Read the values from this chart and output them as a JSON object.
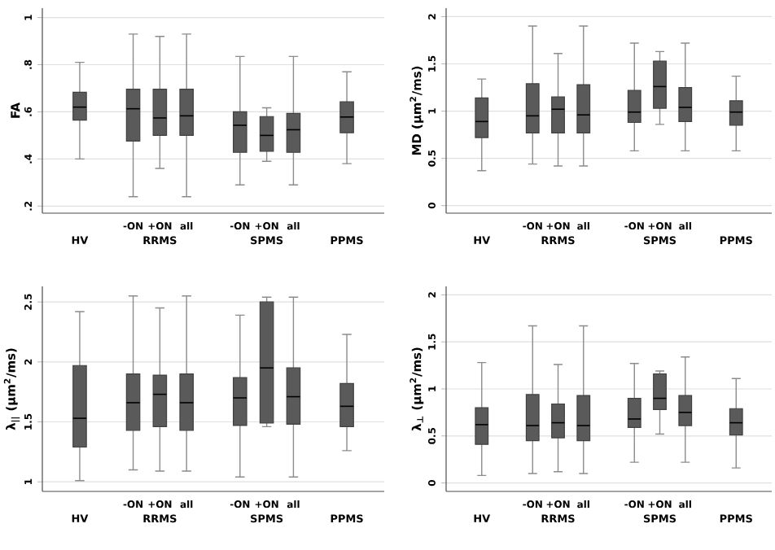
{
  "chart_data": [
    {
      "type": "box",
      "ylabel": "FA",
      "color": "#5a5a5a",
      "grid": "y",
      "categories": [
        null,
        null,
        "-ON",
        "+ON",
        "all",
        null,
        "-ON",
        "+ON",
        "all",
        null,
        null
      ],
      "annotations": [
        "HV",
        "RRMS",
        "SPMS",
        "PPMS"
      ],
      "ylim": [
        0.17,
        1.04
      ],
      "yticks": [
        {
          "value": 0.2,
          "label": ".2"
        },
        {
          "value": 0.4,
          "label": ".4"
        },
        {
          "value": 0.6,
          "label": ".6"
        },
        {
          "value": 0.8,
          "label": ".8"
        },
        1
      ],
      "boxes": [
        {
          "low": 0.4,
          "q1": 0.565,
          "median": 0.62,
          "q3": 0.683,
          "high": 0.81
        },
        null,
        {
          "low": 0.24,
          "q1": 0.476,
          "median": 0.613,
          "q3": 0.696,
          "high": 0.93
        },
        {
          "low": 0.36,
          "q1": 0.5,
          "median": 0.574,
          "q3": 0.696,
          "high": 0.92
        },
        {
          "low": 0.24,
          "q1": 0.5,
          "median": 0.583,
          "q3": 0.696,
          "high": 0.93
        },
        null,
        {
          "low": 0.29,
          "q1": 0.428,
          "median": 0.543,
          "q3": 0.6,
          "high": 0.835
        },
        {
          "low": 0.39,
          "q1": 0.433,
          "median": 0.5,
          "q3": 0.58,
          "high": 0.617
        },
        {
          "low": 0.29,
          "q1": 0.428,
          "median": 0.524,
          "q3": 0.593,
          "high": 0.835
        },
        null,
        {
          "low": 0.38,
          "q1": 0.511,
          "median": 0.578,
          "q3": 0.643,
          "high": 0.77
        }
      ]
    },
    {
      "type": "box",
      "ylabel": "MD (µm$^{2}$/ms)",
      "color": "#5a5a5a",
      "grid": "y",
      "categories": [
        null,
        null,
        "-ON",
        "+ON",
        "all",
        null,
        "-ON",
        "+ON",
        "all",
        null,
        null
      ],
      "annotations": [
        "HV",
        "RRMS",
        "SPMS",
        "PPMS"
      ],
      "ylim": [
        -0.08,
        2.09
      ],
      "yticks": [
        0,
        0.5,
        1,
        1.5,
        2
      ],
      "boxes": [
        {
          "low": 0.37,
          "q1": 0.72,
          "median": 0.89,
          "q3": 1.14,
          "high": 1.34
        },
        null,
        {
          "low": 0.44,
          "q1": 0.77,
          "median": 0.95,
          "q3": 1.29,
          "high": 1.9
        },
        {
          "low": 0.42,
          "q1": 0.77,
          "median": 1.02,
          "q3": 1.15,
          "high": 1.61
        },
        {
          "low": 0.42,
          "q1": 0.77,
          "median": 0.96,
          "q3": 1.28,
          "high": 1.9
        },
        null,
        {
          "low": 0.58,
          "q1": 0.88,
          "median": 0.99,
          "q3": 1.22,
          "high": 1.72
        },
        {
          "low": 0.86,
          "q1": 1.03,
          "median": 1.26,
          "q3": 1.53,
          "high": 1.63
        },
        {
          "low": 0.58,
          "q1": 0.89,
          "median": 1.04,
          "q3": 1.25,
          "high": 1.72
        },
        null,
        {
          "low": 0.58,
          "q1": 0.85,
          "median": 0.99,
          "q3": 1.11,
          "high": 1.37
        }
      ]
    },
    {
      "type": "box",
      "ylabel": "λ$_{||}$ (µm$^{2}$/ms)",
      "color": "#5a5a5a",
      "grid": "y",
      "categories": [
        null,
        null,
        "-ON",
        "+ON",
        "all",
        null,
        "-ON",
        "+ON",
        "all",
        null,
        null
      ],
      "annotations": [
        "HV",
        "RRMS",
        "SPMS",
        "PPMS"
      ],
      "ylim": [
        0.92,
        2.63
      ],
      "yticks": [
        1,
        1.5,
        2,
        2.5
      ],
      "boxes": [
        {
          "low": 1.01,
          "q1": 1.29,
          "median": 1.53,
          "q3": 1.97,
          "high": 2.42
        },
        null,
        {
          "low": 1.1,
          "q1": 1.43,
          "median": 1.66,
          "q3": 1.9,
          "high": 2.55
        },
        {
          "low": 1.09,
          "q1": 1.46,
          "median": 1.73,
          "q3": 1.89,
          "high": 2.45
        },
        {
          "low": 1.09,
          "q1": 1.43,
          "median": 1.66,
          "q3": 1.9,
          "high": 2.55
        },
        null,
        {
          "low": 1.04,
          "q1": 1.47,
          "median": 1.7,
          "q3": 1.87,
          "high": 2.39
        },
        {
          "low": 1.46,
          "q1": 1.49,
          "median": 1.95,
          "q3": 2.5,
          "high": 2.54
        },
        {
          "low": 1.04,
          "q1": 1.48,
          "median": 1.71,
          "q3": 1.95,
          "high": 2.54
        },
        null,
        {
          "low": 1.26,
          "q1": 1.46,
          "median": 1.63,
          "q3": 1.82,
          "high": 2.23
        }
      ]
    },
    {
      "type": "box",
      "ylabel": "λ$_{⊥}$ (µm$^{2}$/ms)",
      "color": "#5a5a5a",
      "grid": "y",
      "categories": [
        null,
        null,
        "-ON",
        "+ON",
        "all",
        null,
        "-ON",
        "+ON",
        "all",
        null,
        null
      ],
      "annotations": [
        "HV",
        "RRMS",
        "SPMS",
        "PPMS"
      ],
      "ylim": [
        -0.09,
        2.09
      ],
      "yticks": [
        0,
        0.5,
        1,
        1.5,
        2
      ],
      "boxes": [
        {
          "low": 0.08,
          "q1": 0.41,
          "median": 0.62,
          "q3": 0.8,
          "high": 1.28
        },
        null,
        {
          "low": 0.1,
          "q1": 0.45,
          "median": 0.61,
          "q3": 0.94,
          "high": 1.67
        },
        {
          "low": 0.12,
          "q1": 0.48,
          "median": 0.64,
          "q3": 0.84,
          "high": 1.26
        },
        {
          "low": 0.1,
          "q1": 0.45,
          "median": 0.61,
          "q3": 0.93,
          "high": 1.67
        },
        null,
        {
          "low": 0.22,
          "q1": 0.59,
          "median": 0.68,
          "q3": 0.9,
          "high": 1.27
        },
        {
          "low": 0.52,
          "q1": 0.78,
          "median": 0.9,
          "q3": 1.16,
          "high": 1.19
        },
        {
          "low": 0.22,
          "q1": 0.61,
          "median": 0.75,
          "q3": 0.93,
          "high": 1.34
        },
        null,
        {
          "low": 0.16,
          "q1": 0.51,
          "median": 0.64,
          "q3": 0.79,
          "high": 1.11
        }
      ]
    }
  ]
}
